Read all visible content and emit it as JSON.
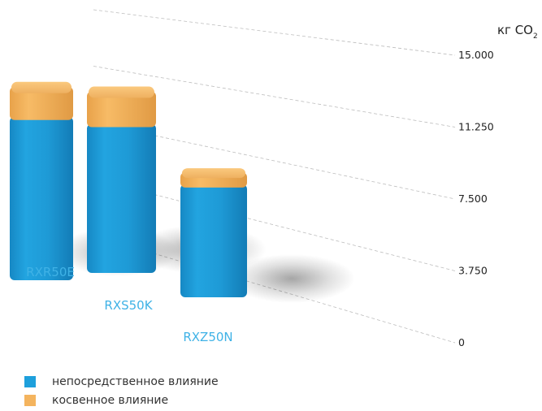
{
  "chart_data": {
    "type": "bar",
    "stacked": true,
    "unit_label": "кг CO",
    "unit_subscript": "2",
    "categories": [
      "RXR50E",
      "RXS50K",
      "RXZ50N"
    ],
    "series": [
      {
        "name": "непосредственное влияние",
        "color": "#1ea0dc",
        "values": [
          13600,
          12400,
          9400
        ]
      },
      {
        "name": "косвенное влияние",
        "color": "#f4b45e",
        "values": [
          2500,
          2700,
          1000
        ]
      }
    ],
    "ylim": [
      0,
      15000
    ],
    "yticks": [
      0,
      3750,
      7500,
      11250,
      15000
    ],
    "ytick_labels": [
      "0",
      "3.750",
      "7.500",
      "11.250",
      "15.000"
    ],
    "grid": true,
    "legend_position": "bottom-left",
    "colors": {
      "category_label": "#3fb2e6",
      "gridline": "#bdbdbd"
    }
  }
}
